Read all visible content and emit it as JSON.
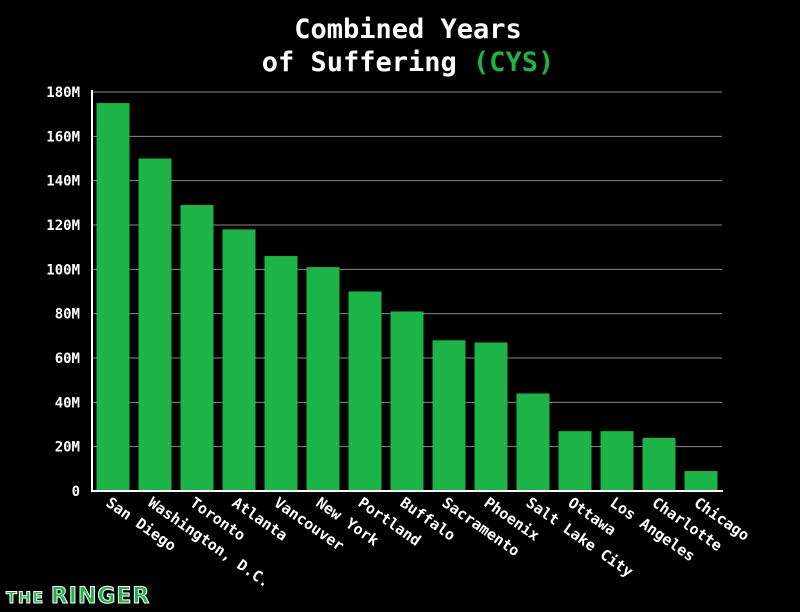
{
  "chart_data": {
    "type": "bar",
    "title_line1": "Combined Years",
    "title_line2": "of Suffering",
    "title_highlight": "(CYS)",
    "xlabel": "",
    "ylabel": "",
    "ylim": [
      0,
      180
    ],
    "unit": "M",
    "yticks": [
      "0",
      "20M",
      "40M",
      "60M",
      "80M",
      "100M",
      "120M",
      "140M",
      "160M",
      "180M"
    ],
    "ytick_values": [
      0,
      20,
      40,
      60,
      80,
      100,
      120,
      140,
      160,
      180
    ],
    "categories": [
      "San Diego",
      "Washington, D.C.",
      "Toronto",
      "Atlanta",
      "Vancouver",
      "New York",
      "Portland",
      "Buffalo",
      "Sacramento",
      "Phoenix",
      "Salt Lake City",
      "Ottawa",
      "Los Angeles",
      "Charlotte",
      "Chicago"
    ],
    "values": [
      175,
      150,
      129,
      118,
      106,
      101,
      90,
      81,
      68,
      67,
      44,
      27,
      27,
      24,
      9
    ],
    "grid": true,
    "bar_color": "#1db447",
    "highlight_color": "#1db447"
  },
  "branding": {
    "the": "THE",
    "ringer": "RINGER"
  }
}
